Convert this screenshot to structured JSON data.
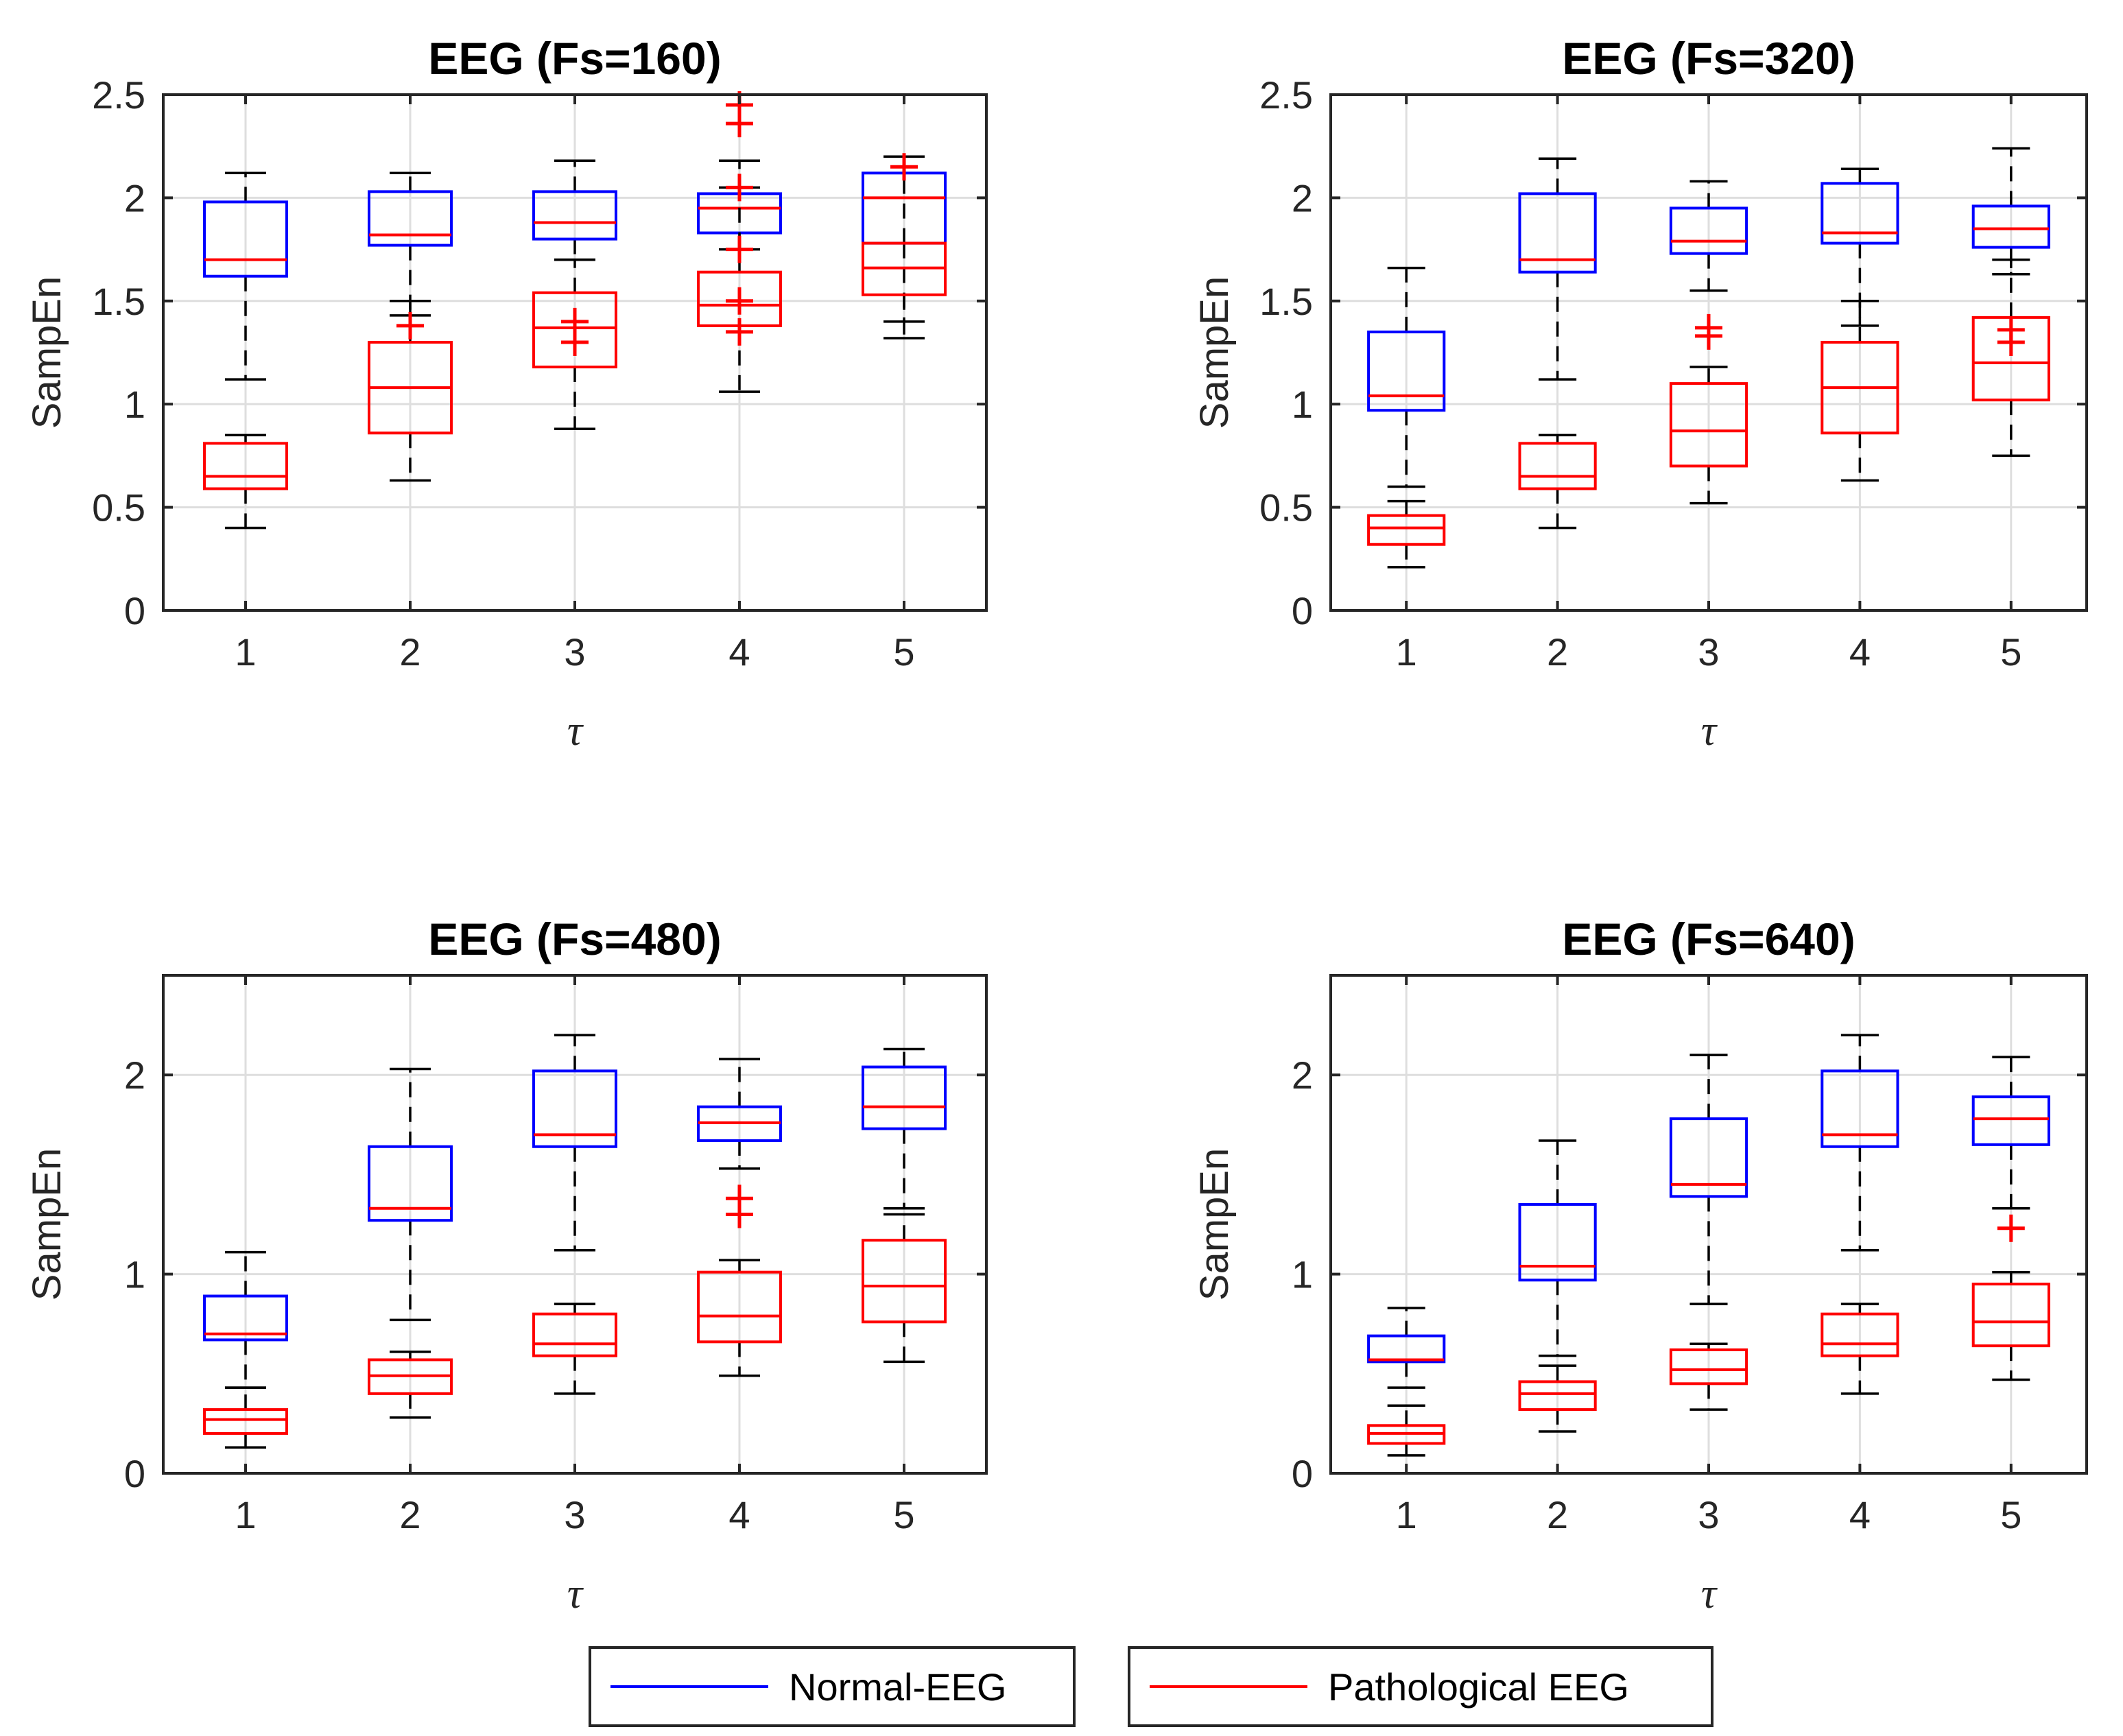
{
  "chart_data": [
    {
      "type": "box",
      "title": "EEG (Fs=160)",
      "xlabel": "τ",
      "ylabel": "SampEn",
      "categories": [
        "1",
        "2",
        "3",
        "4",
        "5"
      ],
      "ylim": [
        0,
        2.5
      ],
      "yticks": [
        "0",
        "0.5",
        "1",
        "1.5",
        "2",
        "2.5"
      ],
      "grid": true,
      "series": [
        {
          "name": "Normal-EEG",
          "color": "#0000ff",
          "boxes": [
            {
              "whisker_low": 1.12,
              "q1": 1.62,
              "median": 1.7,
              "q3": 1.98,
              "whisker_high": 2.12,
              "outliers": []
            },
            {
              "whisker_low": 1.43,
              "q1": 1.77,
              "median": 1.82,
              "q3": 2.03,
              "whisker_high": 2.12,
              "outliers": []
            },
            {
              "whisker_low": 1.7,
              "q1": 1.8,
              "median": 1.88,
              "q3": 2.03,
              "whisker_high": 2.18,
              "outliers": []
            },
            {
              "whisker_low": 1.75,
              "q1": 1.83,
              "median": 1.95,
              "q3": 2.02,
              "whisker_high": 2.18,
              "outliers": []
            },
            {
              "whisker_low": 1.4,
              "q1": 1.78,
              "median": 2.0,
              "q3": 2.12,
              "whisker_high": 2.2,
              "outliers": []
            }
          ]
        },
        {
          "name": "Pathological EEG",
          "color": "#ff0000",
          "boxes": [
            {
              "whisker_low": 0.4,
              "q1": 0.59,
              "median": 0.65,
              "q3": 0.81,
              "whisker_high": 0.85,
              "outliers": []
            },
            {
              "whisker_low": 0.63,
              "q1": 0.86,
              "median": 1.08,
              "q3": 1.3,
              "whisker_high": 1.5,
              "outliers": [
                1.38
              ]
            },
            {
              "whisker_low": 0.88,
              "q1": 1.18,
              "median": 1.37,
              "q3": 1.54,
              "whisker_high": 1.7,
              "outliers": [
                1.3,
                1.4
              ]
            },
            {
              "whisker_low": 1.06,
              "q1": 1.38,
              "median": 1.48,
              "q3": 1.64,
              "whisker_high": 2.05,
              "outliers": [
                1.35,
                1.5,
                1.75,
                2.05,
                2.36,
                2.45
              ]
            },
            {
              "whisker_low": 1.32,
              "q1": 1.53,
              "median": 1.66,
              "q3": 1.78,
              "whisker_high": 2.2,
              "outliers": [
                2.15
              ]
            }
          ]
        }
      ]
    },
    {
      "type": "box",
      "title": "EEG (Fs=320)",
      "xlabel": "τ",
      "ylabel": "SampEn",
      "categories": [
        "1",
        "2",
        "3",
        "4",
        "5"
      ],
      "ylim": [
        0,
        2.5
      ],
      "yticks": [
        "0",
        "0.5",
        "1",
        "1.5",
        "2",
        "2.5"
      ],
      "grid": true,
      "series": [
        {
          "name": "Normal-EEG",
          "color": "#0000ff",
          "boxes": [
            {
              "whisker_low": 0.6,
              "q1": 0.97,
              "median": 1.04,
              "q3": 1.35,
              "whisker_high": 1.66,
              "outliers": []
            },
            {
              "whisker_low": 1.12,
              "q1": 1.64,
              "median": 1.7,
              "q3": 2.02,
              "whisker_high": 2.19,
              "outliers": []
            },
            {
              "whisker_low": 1.55,
              "q1": 1.73,
              "median": 1.79,
              "q3": 1.95,
              "whisker_high": 2.08,
              "outliers": []
            },
            {
              "whisker_low": 1.38,
              "q1": 1.78,
              "median": 1.83,
              "q3": 2.07,
              "whisker_high": 2.14,
              "outliers": []
            },
            {
              "whisker_low": 1.63,
              "q1": 1.76,
              "median": 1.85,
              "q3": 1.96,
              "whisker_high": 2.24,
              "outliers": []
            }
          ]
        },
        {
          "name": "Pathological EEG",
          "color": "#ff0000",
          "boxes": [
            {
              "whisker_low": 0.21,
              "q1": 0.32,
              "median": 0.4,
              "q3": 0.46,
              "whisker_high": 0.53,
              "outliers": []
            },
            {
              "whisker_low": 0.4,
              "q1": 0.59,
              "median": 0.65,
              "q3": 0.81,
              "whisker_high": 0.85,
              "outliers": []
            },
            {
              "whisker_low": 0.52,
              "q1": 0.7,
              "median": 0.87,
              "q3": 1.1,
              "whisker_high": 1.18,
              "outliers": [
                1.33,
                1.37
              ]
            },
            {
              "whisker_low": 0.63,
              "q1": 0.86,
              "median": 1.08,
              "q3": 1.3,
              "whisker_high": 1.5,
              "outliers": []
            },
            {
              "whisker_low": 0.75,
              "q1": 1.02,
              "median": 1.2,
              "q3": 1.42,
              "whisker_high": 1.7,
              "outliers": [
                1.3,
                1.36
              ]
            }
          ]
        }
      ]
    },
    {
      "type": "box",
      "title": "EEG (Fs=480)",
      "xlabel": "τ",
      "ylabel": "SampEn",
      "categories": [
        "1",
        "2",
        "3",
        "4",
        "5"
      ],
      "ylim": [
        0,
        2.5
      ],
      "yticks": [
        "0",
        "1",
        "2"
      ],
      "grid": true,
      "series": [
        {
          "name": "Normal-EEG",
          "color": "#0000ff",
          "boxes": [
            {
              "whisker_low": 0.43,
              "q1": 0.67,
              "median": 0.7,
              "q3": 0.89,
              "whisker_high": 1.11,
              "outliers": []
            },
            {
              "whisker_low": 0.77,
              "q1": 1.27,
              "median": 1.33,
              "q3": 1.64,
              "whisker_high": 2.03,
              "outliers": []
            },
            {
              "whisker_low": 1.12,
              "q1": 1.64,
              "median": 1.7,
              "q3": 2.02,
              "whisker_high": 2.2,
              "outliers": []
            },
            {
              "whisker_low": 1.53,
              "q1": 1.67,
              "median": 1.76,
              "q3": 1.84,
              "whisker_high": 2.08,
              "outliers": []
            },
            {
              "whisker_low": 1.33,
              "q1": 1.73,
              "median": 1.84,
              "q3": 2.04,
              "whisker_high": 2.13,
              "outliers": []
            }
          ]
        },
        {
          "name": "Pathological EEG",
          "color": "#ff0000",
          "boxes": [
            {
              "whisker_low": 0.13,
              "q1": 0.2,
              "median": 0.27,
              "q3": 0.32,
              "whisker_high": 0.43,
              "outliers": []
            },
            {
              "whisker_low": 0.28,
              "q1": 0.4,
              "median": 0.49,
              "q3": 0.57,
              "whisker_high": 0.61,
              "outliers": []
            },
            {
              "whisker_low": 0.4,
              "q1": 0.59,
              "median": 0.65,
              "q3": 0.8,
              "whisker_high": 0.85,
              "outliers": []
            },
            {
              "whisker_low": 0.49,
              "q1": 0.66,
              "median": 0.79,
              "q3": 1.01,
              "whisker_high": 1.07,
              "outliers": [
                1.3,
                1.38
              ]
            },
            {
              "whisker_low": 0.56,
              "q1": 0.76,
              "median": 0.94,
              "q3": 1.17,
              "whisker_high": 1.3,
              "outliers": []
            }
          ]
        }
      ]
    },
    {
      "type": "box",
      "title": "EEG (Fs=640)",
      "xlabel": "τ",
      "ylabel": "SampEn",
      "categories": [
        "1",
        "2",
        "3",
        "4",
        "5"
      ],
      "ylim": [
        0,
        2.5
      ],
      "yticks": [
        "0",
        "1",
        "2"
      ],
      "grid": true,
      "series": [
        {
          "name": "Normal-EEG",
          "color": "#0000ff",
          "boxes": [
            {
              "whisker_low": 0.43,
              "q1": 0.56,
              "median": 0.57,
              "q3": 0.69,
              "whisker_high": 0.83,
              "outliers": []
            },
            {
              "whisker_low": 0.59,
              "q1": 0.97,
              "median": 1.04,
              "q3": 1.35,
              "whisker_high": 1.67,
              "outliers": []
            },
            {
              "whisker_low": 0.85,
              "q1": 1.39,
              "median": 1.45,
              "q3": 1.78,
              "whisker_high": 2.1,
              "outliers": []
            },
            {
              "whisker_low": 1.12,
              "q1": 1.64,
              "median": 1.7,
              "q3": 2.02,
              "whisker_high": 2.2,
              "outliers": []
            },
            {
              "whisker_low": 1.33,
              "q1": 1.65,
              "median": 1.78,
              "q3": 1.89,
              "whisker_high": 2.09,
              "outliers": []
            }
          ]
        },
        {
          "name": "Pathological EEG",
          "color": "#ff0000",
          "boxes": [
            {
              "whisker_low": 0.09,
              "q1": 0.15,
              "median": 0.2,
              "q3": 0.24,
              "whisker_high": 0.34,
              "outliers": []
            },
            {
              "whisker_low": 0.21,
              "q1": 0.32,
              "median": 0.4,
              "q3": 0.46,
              "whisker_high": 0.54,
              "outliers": []
            },
            {
              "whisker_low": 0.32,
              "q1": 0.45,
              "median": 0.52,
              "q3": 0.62,
              "whisker_high": 0.65,
              "outliers": []
            },
            {
              "whisker_low": 0.4,
              "q1": 0.59,
              "median": 0.65,
              "q3": 0.8,
              "whisker_high": 0.85,
              "outliers": []
            },
            {
              "whisker_low": 0.47,
              "q1": 0.64,
              "median": 0.76,
              "q3": 0.95,
              "whisker_high": 1.01,
              "outliers": [
                1.23
              ]
            }
          ]
        }
      ]
    }
  ],
  "legend": {
    "placement": "bottom-center",
    "items": [
      {
        "label": "Normal-EEG",
        "color": "#0000ff"
      },
      {
        "label": "Pathological EEG",
        "color": "#ff0000"
      }
    ]
  }
}
